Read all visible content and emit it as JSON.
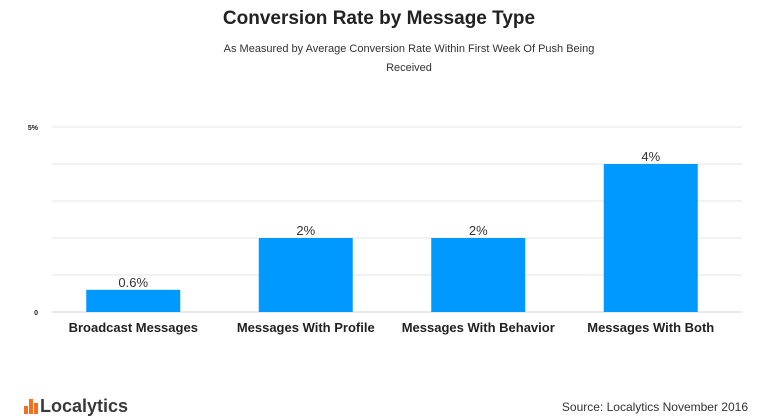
{
  "chart_data": {
    "type": "bar",
    "title": "Conversion Rate by Message Type",
    "subtitle": "As Measured by Average Conversion Rate Within First Week Of Push Being Received",
    "categories": [
      "Broadcast Messages",
      "Messages With Profile",
      "Messages With Behavior",
      "Messages With Both"
    ],
    "values": [
      0.6,
      2,
      2,
      4
    ],
    "data_labels": [
      "0.6%",
      "2%",
      "2%",
      "4%"
    ],
    "ylim": [
      0,
      5
    ],
    "y_tick_labels": [
      {
        "value": 0,
        "label": "0"
      },
      {
        "value": 5,
        "label": "5%"
      }
    ],
    "gridlines": [
      0,
      1,
      2,
      3,
      4,
      5
    ],
    "grid": true,
    "bar_color": "#0099ff",
    "xlabel": "",
    "ylabel": ""
  },
  "branding": {
    "logo_text": "Localytics",
    "logo_color": "#f37021"
  },
  "source": "Source: Localytics November 2016"
}
